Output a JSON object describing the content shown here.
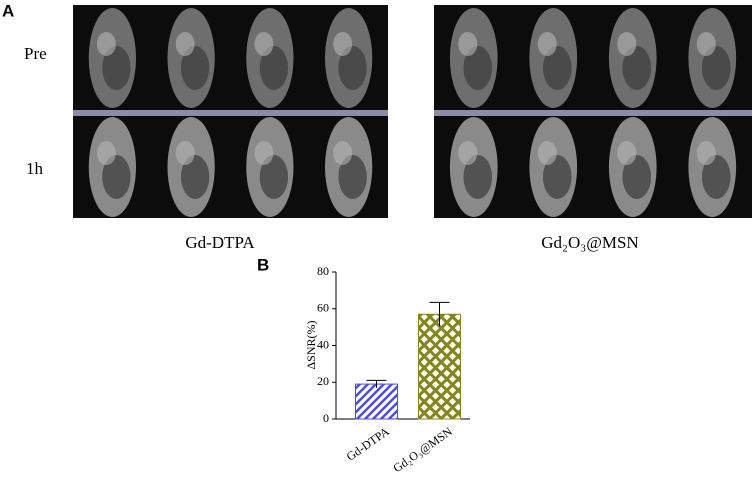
{
  "panel_a": {
    "label": "A",
    "rows": [
      "Pre",
      "1h"
    ],
    "groups": [
      "Gd-DTPA",
      "Gd₂O₃@MSN"
    ]
  },
  "chart_data": {
    "type": "bar",
    "panel_label": "B",
    "y_label": "ΔSNR(%)",
    "categories": [
      "Gd-DTPA",
      "Gd₂O₃@MSN"
    ],
    "values": [
      19,
      57
    ],
    "errors": [
      2,
      6.5
    ],
    "colors": [
      "#4b4fe0",
      "#85851c"
    ],
    "ylim": [
      0,
      80
    ],
    "yticks": [
      0,
      20,
      40,
      60,
      80
    ]
  }
}
